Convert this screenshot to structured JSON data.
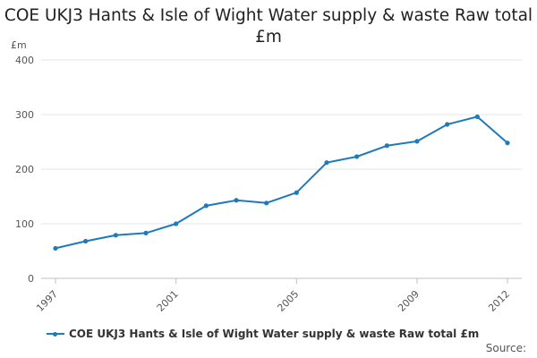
{
  "chart_data": {
    "type": "line",
    "title": "COE UKJ3 Hants & Isle of Wight Water supply & waste Raw total £m",
    "ylabel": "£m",
    "xlabel": "",
    "ylim": [
      0,
      400
    ],
    "yticks": [
      0,
      100,
      200,
      300,
      400
    ],
    "xlim": [
      1997,
      2012
    ],
    "xticks": [
      1997,
      2001,
      2005,
      2009,
      2012
    ],
    "grid": true,
    "legend_position": "bottom",
    "series": [
      {
        "name": "COE UKJ3 Hants & Isle of Wight Water supply & waste Raw total £m",
        "color": "#1f7ab8",
        "x": [
          1997,
          1998,
          1999,
          2000,
          2001,
          2002,
          2003,
          2004,
          2005,
          2006,
          2007,
          2008,
          2009,
          2010,
          2011,
          2012
        ],
        "values": [
          55,
          68,
          79,
          83,
          100,
          133,
          143,
          138,
          157,
          212,
          223,
          243,
          251,
          282,
          296,
          248
        ]
      }
    ]
  },
  "source_label": "Source:"
}
